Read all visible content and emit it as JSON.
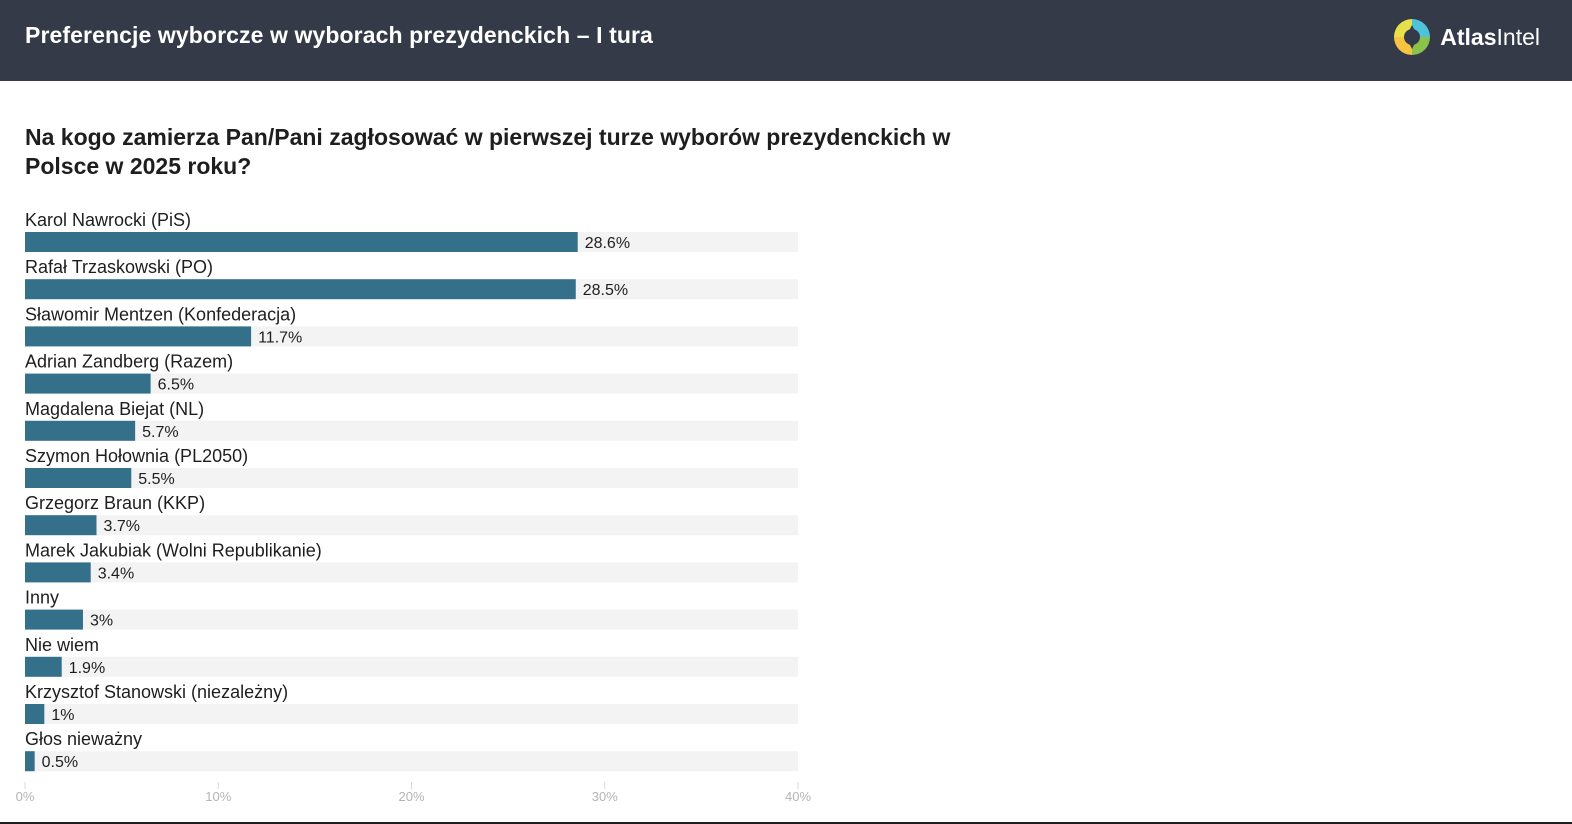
{
  "header": {
    "title": "Preferencje wyborcze w wyborach prezydenckich – I tura",
    "logo_bold": "Atlas",
    "logo_light": "Intel",
    "logo_colors": [
      "#f5c542",
      "#4fc3d9",
      "#8bc34a"
    ]
  },
  "colors": {
    "header_bg": "#343a47",
    "bar": "#35708a",
    "track": "#f3f3f3",
    "tick_text": "#b4b4b4"
  },
  "chart_data": {
    "type": "bar",
    "orientation": "horizontal",
    "title": "Na kogo zamierza Pan/Pani zagłosować w pierwszej turze wyborów prezydenckich w Polsce w 2025 roku?",
    "categories": [
      "Karol Nawrocki (PiS)",
      "Rafał Trzaskowski (PO)",
      "Sławomir Mentzen (Konfederacja)",
      "Adrian Zandberg (Razem)",
      "Magdalena Biejat (NL)",
      "Szymon Hołownia (PL2050)",
      "Grzegorz Braun (KKP)",
      "Marek Jakubiak (Wolni Republikanie)",
      "Inny",
      "Nie wiem",
      "Krzysztof Stanowski (niezależny)",
      "Głos nieważny"
    ],
    "values": [
      28.6,
      28.5,
      11.7,
      6.5,
      5.7,
      5.5,
      3.7,
      3.4,
      3,
      1.9,
      1,
      0.5
    ],
    "value_labels": [
      "28.6%",
      "28.5%",
      "11.7%",
      "6.5%",
      "5.7%",
      "5.5%",
      "3.7%",
      "3.4%",
      "3%",
      "1.9%",
      "1%",
      "0.5%"
    ],
    "xlim": [
      0,
      40
    ],
    "ticks": [
      0,
      10,
      20,
      30,
      40
    ],
    "tick_labels": [
      "0%",
      "10%",
      "20%",
      "30%",
      "40%"
    ],
    "grid": false,
    "legend": "none"
  }
}
